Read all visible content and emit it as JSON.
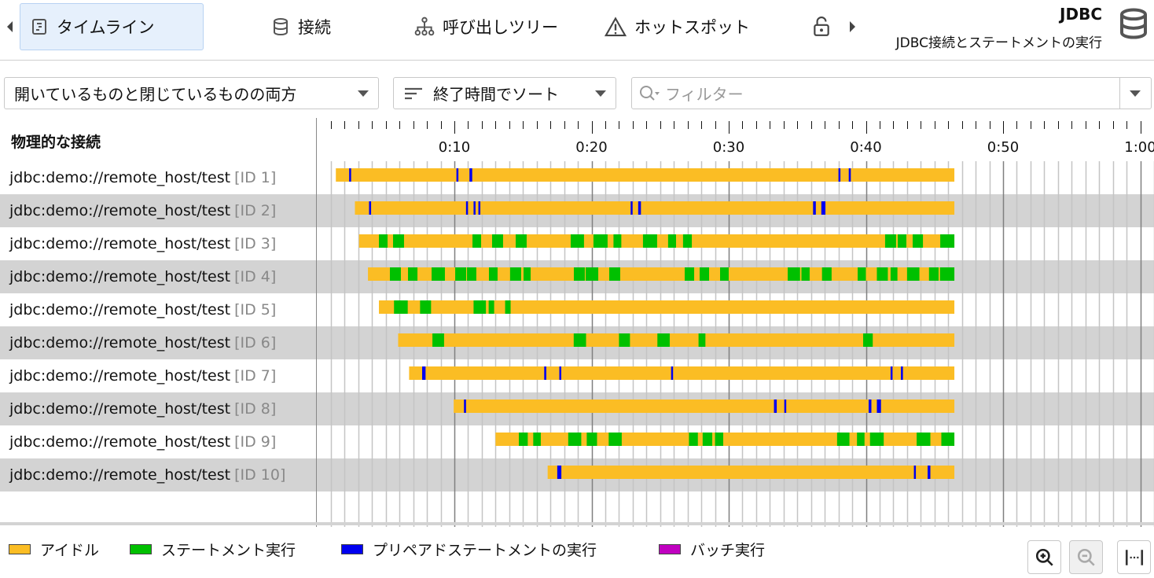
{
  "tabs": [
    {
      "label": "タイムライン",
      "icon": "timeline-icon",
      "active": true
    },
    {
      "label": "接続",
      "icon": "database-icon"
    },
    {
      "label": "呼び出しツリー",
      "icon": "call-tree-icon"
    },
    {
      "label": "ホットスポット",
      "icon": "warning-icon"
    },
    {
      "label": "",
      "icon": "lock-icon"
    }
  ],
  "header": {
    "title": "JDBC",
    "subtitle": "JDBC接続とステートメントの実行",
    "icon": "database-icon"
  },
  "toolbar": {
    "scope_select": "開いているものと閉じているものの両方",
    "sort_select": "終了時間でソート",
    "filter_placeholder": "フィルター"
  },
  "column_header": "物理的な接続",
  "legend": [
    {
      "label": "アイドル",
      "color": "#fbbd24"
    },
    {
      "label": "ステートメント実行",
      "color": "#00c000"
    },
    {
      "label": "プリペアドステートメントの実行",
      "color": "#0000f0"
    },
    {
      "label": "バッチ実行",
      "color": "#c000c0"
    }
  ],
  "chart_data": {
    "type": "timeline",
    "x_unit": "seconds",
    "xlim": [
      0,
      61
    ],
    "tick_labels": [
      "0:10",
      "0:20",
      "0:30",
      "0:40",
      "0:50",
      "1:00"
    ],
    "tick_values": [
      10,
      20,
      30,
      40,
      50,
      60
    ],
    "rows": [
      {
        "name": "jdbc:demo://remote_host/test",
        "id": "[ID 1]",
        "start": 1.36,
        "end": 46.45,
        "segments": [
          [
            2.33,
            2.42,
            "prepared"
          ],
          [
            10.15,
            10.25,
            "prepared"
          ],
          [
            11.1,
            11.3,
            "prepared"
          ],
          [
            38.0,
            38.1,
            "prepared"
          ],
          [
            38.75,
            38.9,
            "prepared"
          ]
        ]
      },
      {
        "name": "jdbc:demo://remote_host/test",
        "id": "[ID 2]",
        "start": 2.75,
        "end": 46.45,
        "segments": [
          [
            3.78,
            3.93,
            "prepared"
          ],
          [
            10.85,
            10.95,
            "prepared"
          ],
          [
            11.4,
            11.5,
            "prepared"
          ],
          [
            11.75,
            11.8,
            "prepared"
          ],
          [
            22.85,
            22.95,
            "prepared"
          ],
          [
            23.4,
            23.6,
            "prepared"
          ],
          [
            36.15,
            36.35,
            "prepared"
          ],
          [
            36.75,
            37.05,
            "prepared"
          ]
        ]
      },
      {
        "name": "jdbc:demo://remote_host/test",
        "id": "[ID 3]",
        "start": 3.05,
        "end": 46.45,
        "segments": [
          [
            4.5,
            5.13,
            "statement"
          ],
          [
            5.53,
            6.33,
            "statement"
          ],
          [
            11.32,
            11.95,
            "statement"
          ],
          [
            12.75,
            13.55,
            "statement"
          ],
          [
            14.47,
            15.27,
            "statement"
          ],
          [
            18.48,
            19.45,
            "statement"
          ],
          [
            20.14,
            21.17,
            "statement"
          ],
          [
            21.6,
            22.17,
            "statement"
          ],
          [
            23.75,
            24.78,
            "statement"
          ],
          [
            25.58,
            26.16,
            "statement"
          ],
          [
            26.67,
            27.31,
            "statement"
          ],
          [
            41.4,
            42.2,
            "statement"
          ],
          [
            42.32,
            42.95,
            "statement"
          ],
          [
            43.41,
            44.16,
            "statement"
          ],
          [
            45.42,
            46.45,
            "statement"
          ]
        ]
      },
      {
        "name": "jdbc:demo://remote_host/test",
        "id": "[ID 4]",
        "start": 3.7,
        "end": 46.45,
        "segments": [
          [
            5.3,
            6.1,
            "statement"
          ],
          [
            6.62,
            7.31,
            "statement"
          ],
          [
            8.34,
            9.31,
            "statement"
          ],
          [
            10.06,
            10.86,
            "statement"
          ],
          [
            10.92,
            11.6,
            "statement"
          ],
          [
            12.52,
            13.15,
            "statement"
          ],
          [
            14.06,
            14.87,
            "statement"
          ],
          [
            15.04,
            15.56,
            "statement"
          ],
          [
            18.71,
            19.51,
            "statement"
          ],
          [
            19.57,
            20.49,
            "statement"
          ],
          [
            21.29,
            22.09,
            "statement"
          ],
          [
            26.79,
            27.48,
            "statement"
          ],
          [
            27.88,
            28.57,
            "statement"
          ],
          [
            29.37,
            30.0,
            "statement"
          ],
          [
            34.3,
            35.2,
            "statement"
          ],
          [
            35.3,
            35.9,
            "statement"
          ],
          [
            36.8,
            37.5,
            "statement"
          ],
          [
            39.4,
            40.0,
            "statement"
          ],
          [
            40.8,
            41.6,
            "statement"
          ],
          [
            41.8,
            42.3,
            "statement"
          ],
          [
            43.0,
            43.9,
            "statement"
          ],
          [
            44.6,
            45.3,
            "statement"
          ],
          [
            45.4,
            46.45,
            "statement"
          ]
        ]
      },
      {
        "name": "jdbc:demo://remote_host/test",
        "id": "[ID 5]",
        "start": 4.5,
        "end": 46.45,
        "segments": [
          [
            5.6,
            6.6,
            "statement"
          ],
          [
            7.5,
            8.3,
            "statement"
          ],
          [
            11.4,
            12.3,
            "statement"
          ],
          [
            12.5,
            12.9,
            "statement"
          ],
          [
            13.7,
            14.1,
            "statement"
          ]
        ]
      },
      {
        "name": "jdbc:demo://remote_host/test",
        "id": "[ID 6]",
        "start": 5.9,
        "end": 46.45,
        "segments": [
          [
            8.4,
            9.25,
            "statement"
          ],
          [
            18.7,
            19.6,
            "statement"
          ],
          [
            22.0,
            22.8,
            "statement"
          ],
          [
            24.8,
            25.7,
            "statement"
          ],
          [
            27.8,
            28.3,
            "statement"
          ],
          [
            39.8,
            40.5,
            "statement"
          ]
        ]
      },
      {
        "name": "jdbc:demo://remote_host/test",
        "id": "[ID 7]",
        "start": 6.7,
        "end": 46.45,
        "segments": [
          [
            7.65,
            7.9,
            "prepared"
          ],
          [
            16.55,
            16.7,
            "prepared"
          ],
          [
            17.65,
            17.75,
            "prepared"
          ],
          [
            25.8,
            25.9,
            "prepared"
          ],
          [
            41.8,
            41.9,
            "prepared"
          ],
          [
            42.55,
            42.7,
            "prepared"
          ]
        ]
      },
      {
        "name": "jdbc:demo://remote_host/test",
        "id": "[ID 8]",
        "start": 9.95,
        "end": 46.45,
        "segments": [
          [
            10.7,
            10.85,
            "prepared"
          ],
          [
            33.3,
            33.5,
            "prepared"
          ],
          [
            34.05,
            34.15,
            "prepared"
          ],
          [
            40.2,
            40.4,
            "prepared"
          ],
          [
            40.8,
            41.1,
            "prepared"
          ]
        ]
      },
      {
        "name": "jdbc:demo://remote_host/test",
        "id": "[ID 9]",
        "start": 13.0,
        "end": 46.45,
        "segments": [
          [
            14.7,
            15.35,
            "statement"
          ],
          [
            15.75,
            16.3,
            "statement"
          ],
          [
            18.3,
            19.25,
            "statement"
          ],
          [
            19.65,
            20.4,
            "statement"
          ],
          [
            21.25,
            22.2,
            "statement"
          ],
          [
            27.1,
            27.75,
            "statement"
          ],
          [
            28.1,
            28.8,
            "statement"
          ],
          [
            29.0,
            29.6,
            "statement"
          ],
          [
            37.9,
            38.8,
            "statement"
          ],
          [
            39.35,
            39.9,
            "statement"
          ],
          [
            40.3,
            41.3,
            "statement"
          ],
          [
            43.7,
            44.7,
            "statement"
          ],
          [
            45.5,
            46.45,
            "statement"
          ]
        ]
      },
      {
        "name": "jdbc:demo://remote_host/test",
        "id": "[ID 10]",
        "start": 16.8,
        "end": 46.45,
        "segments": [
          [
            17.5,
            17.8,
            "prepared"
          ],
          [
            43.5,
            43.6,
            "prepared"
          ],
          [
            44.5,
            44.7,
            "prepared"
          ]
        ]
      }
    ],
    "colors": {
      "idle": "#fbbd24",
      "statement": "#00c000",
      "prepared": "#0000f0",
      "batch": "#c000c0"
    }
  }
}
